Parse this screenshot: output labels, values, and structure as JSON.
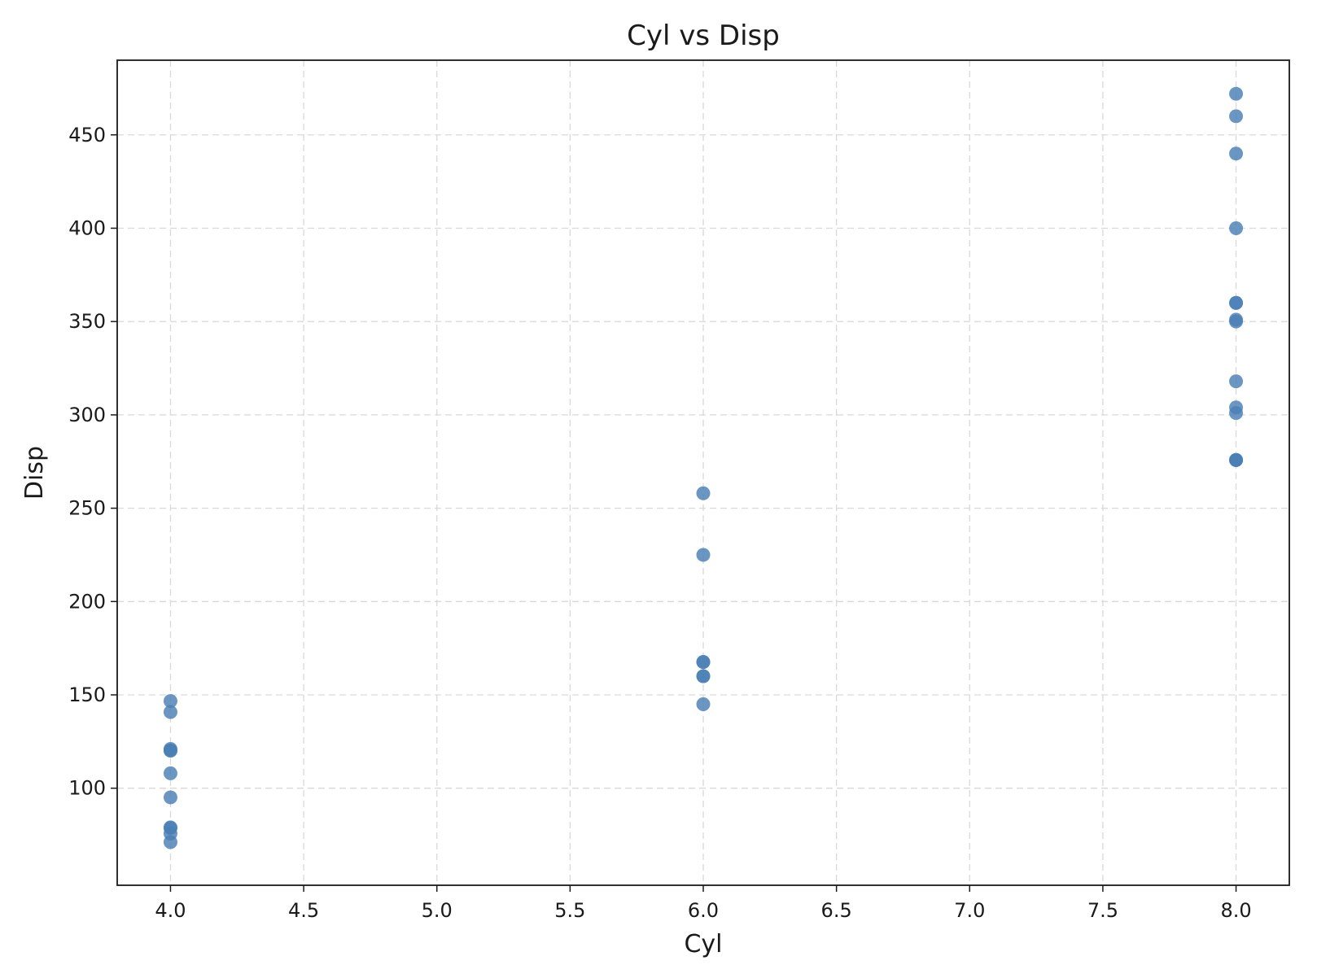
{
  "chart_data": {
    "type": "scatter",
    "title": "Cyl vs Disp",
    "xlabel": "Cyl",
    "ylabel": "Disp",
    "xlim": [
      3.8,
      8.2
    ],
    "ylim": [
      48,
      490
    ],
    "xticks": [
      "4.0",
      "4.5",
      "5.0",
      "5.5",
      "6.0",
      "6.5",
      "7.0",
      "7.5",
      "8.0"
    ],
    "yticks": [
      "100",
      "150",
      "200",
      "250",
      "300",
      "350",
      "400",
      "450"
    ],
    "grid": true,
    "marker_color": "#4a7fb5",
    "marker_opacity": 0.82,
    "points": [
      {
        "x": 4,
        "y": 146.7
      },
      {
        "x": 4,
        "y": 140.8
      },
      {
        "x": 4,
        "y": 120.3
      },
      {
        "x": 4,
        "y": 120.1
      },
      {
        "x": 4,
        "y": 121.0
      },
      {
        "x": 4,
        "y": 108.0
      },
      {
        "x": 4,
        "y": 95.1
      },
      {
        "x": 4,
        "y": 79.0
      },
      {
        "x": 4,
        "y": 78.7
      },
      {
        "x": 4,
        "y": 75.7
      },
      {
        "x": 4,
        "y": 71.1
      },
      {
        "x": 6,
        "y": 258.0
      },
      {
        "x": 6,
        "y": 225.0
      },
      {
        "x": 6,
        "y": 167.6
      },
      {
        "x": 6,
        "y": 167.6
      },
      {
        "x": 6,
        "y": 160.0
      },
      {
        "x": 6,
        "y": 160.0
      },
      {
        "x": 6,
        "y": 145.0
      },
      {
        "x": 8,
        "y": 472.0
      },
      {
        "x": 8,
        "y": 460.0
      },
      {
        "x": 8,
        "y": 440.0
      },
      {
        "x": 8,
        "y": 400.0
      },
      {
        "x": 8,
        "y": 360.0
      },
      {
        "x": 8,
        "y": 360.0
      },
      {
        "x": 8,
        "y": 350.0
      },
      {
        "x": 8,
        "y": 351.0
      },
      {
        "x": 8,
        "y": 318.0
      },
      {
        "x": 8,
        "y": 304.0
      },
      {
        "x": 8,
        "y": 301.0
      },
      {
        "x": 8,
        "y": 275.8
      },
      {
        "x": 8,
        "y": 275.8
      },
      {
        "x": 8,
        "y": 275.8
      }
    ]
  }
}
